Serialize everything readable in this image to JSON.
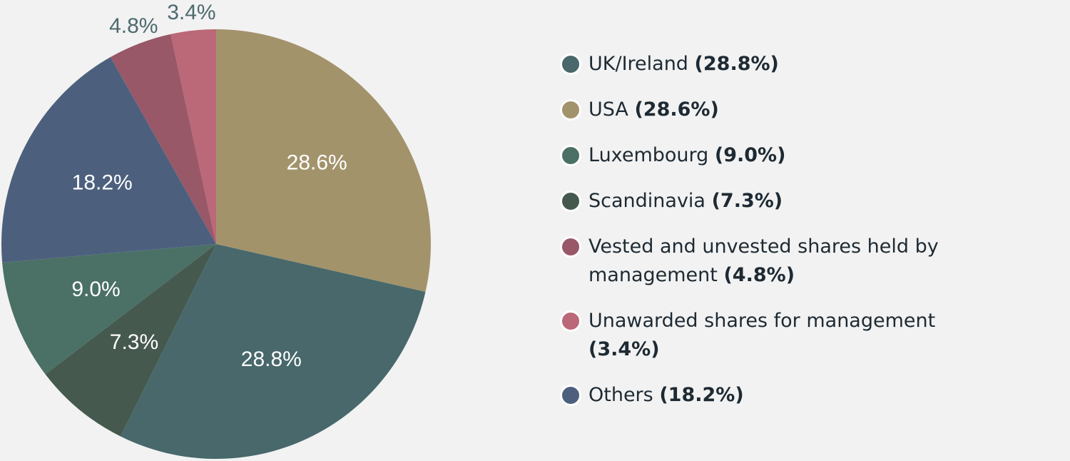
{
  "chart_data": {
    "type": "pie",
    "start_angle_deg": 0,
    "direction": "clockwise",
    "slices": [
      {
        "label": "USA",
        "value": 28.6,
        "display": "28.6%",
        "color": "#a3936b",
        "text_color": "#ffffff"
      },
      {
        "label": "UK/Ireland",
        "value": 28.8,
        "display": "28.8%",
        "color": "#48686b",
        "text_color": "#ffffff"
      },
      {
        "label": "Scandinavia",
        "value": 7.3,
        "display": "7.3%",
        "color": "#45594f",
        "text_color": "#ffffff"
      },
      {
        "label": "Luxembourg",
        "value": 9.0,
        "display": "9.0%",
        "color": "#4b7066",
        "text_color": "#ffffff"
      },
      {
        "label": "Others",
        "value": 18.2,
        "display": "18.2%",
        "color": "#4c607e",
        "text_color": "#ffffff"
      },
      {
        "label": "Vested and unvested shares held by management",
        "value": 4.8,
        "display": "4.8%",
        "color": "#985868",
        "text_color": "#4d6a6e",
        "label_outside": true
      },
      {
        "label": "Unawarded shares for management",
        "value": 3.4,
        "display": "3.4%",
        "color": "#bb6878",
        "text_color": "#4d6a6e",
        "label_outside": true
      }
    ]
  },
  "legend": {
    "position": "right",
    "items": [
      {
        "name": "UK/Ireland",
        "pct": "(28.8%)",
        "color": "#48686b"
      },
      {
        "name": "USA",
        "pct": "(28.6%)",
        "color": "#a3936b"
      },
      {
        "name": "Luxembourg",
        "pct": "(9.0%)",
        "color": "#4b7066"
      },
      {
        "name": "Scandinavia",
        "pct": "(7.3%)",
        "color": "#45594f"
      },
      {
        "name": "Vested and unvested shares held by management",
        "pct": "(4.8%)",
        "color": "#985868"
      },
      {
        "name": "Unawarded shares for management",
        "pct": "(3.4%)",
        "color": "#bb6878"
      },
      {
        "name": "Others",
        "pct": "(18.2%)",
        "color": "#4c607e"
      }
    ]
  }
}
